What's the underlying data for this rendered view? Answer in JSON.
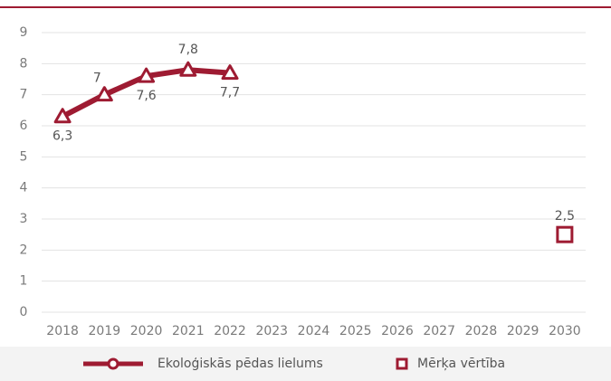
{
  "chart_data": {
    "type": "line",
    "categories": [
      "2018",
      "2019",
      "2020",
      "2021",
      "2022",
      "2023",
      "2024",
      "2025",
      "2026",
      "2027",
      "2028",
      "2029",
      "2030"
    ],
    "series": [
      {
        "name": "Ekoloģiskās pēdas lielums",
        "color": "#9e1b32",
        "marker": "triangle",
        "values": [
          6.3,
          7,
          7.6,
          7.8,
          7.7,
          null,
          null,
          null,
          null,
          null,
          null,
          null,
          null
        ],
        "value_labels": [
          "6,3",
          "7",
          "7,6",
          "7,8",
          "7,7",
          null,
          null,
          null,
          null,
          null,
          null,
          null,
          null
        ]
      },
      {
        "name": "Mērķa vērtība",
        "color": "#9e1b32",
        "marker": "square",
        "values": [
          null,
          null,
          null,
          null,
          null,
          null,
          null,
          null,
          null,
          null,
          null,
          null,
          2.5
        ],
        "value_labels": [
          null,
          null,
          null,
          null,
          null,
          null,
          null,
          null,
          null,
          null,
          null,
          null,
          "2,5"
        ]
      }
    ],
    "ylim": [
      0,
      9
    ],
    "yticks": [
      0,
      1,
      2,
      3,
      4,
      5,
      6,
      7,
      8,
      9
    ],
    "grid": true,
    "legend": "bottom"
  }
}
